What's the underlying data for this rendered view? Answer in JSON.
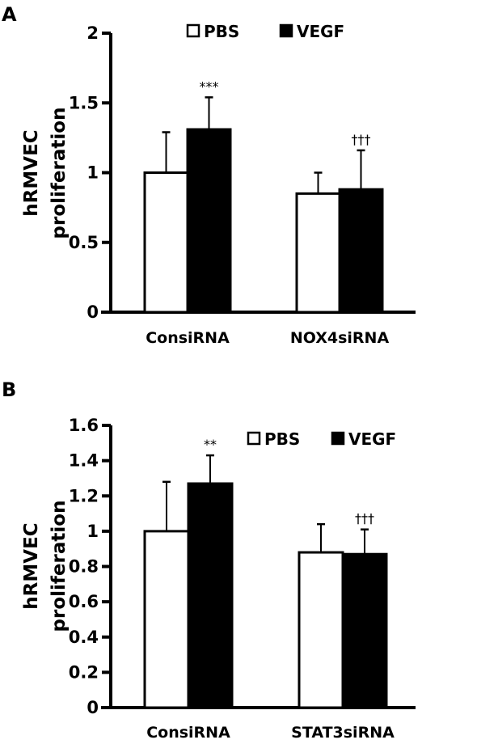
{
  "chart_data": [
    {
      "panel": "A",
      "type": "bar",
      "title": "",
      "xlabel": "",
      "ylabel": [
        "hRMVEC",
        "proliferation"
      ],
      "ylim": [
        0,
        2
      ],
      "yticks": [
        0,
        0.5,
        1,
        1.5,
        2
      ],
      "ytick_labels": [
        "0",
        "0.5",
        "1",
        "1.5",
        "2"
      ],
      "grid": false,
      "legend_position": "top-center",
      "categories": [
        "ConsiRNA",
        "NOX4siRNA"
      ],
      "series": [
        {
          "name": "PBS",
          "color": "#ffffff",
          "values": [
            1.0,
            0.85
          ],
          "error_upper": [
            1.29,
            1.0
          ]
        },
        {
          "name": "VEGF",
          "color": "#000000",
          "values": [
            1.31,
            0.88
          ],
          "error_upper": [
            1.54,
            1.16
          ]
        }
      ],
      "annotations": [
        {
          "text": "***",
          "category": 0,
          "series": 1
        },
        {
          "text": "†††",
          "category": 1,
          "series": 1
        }
      ]
    },
    {
      "panel": "B",
      "type": "bar",
      "title": "",
      "xlabel": "",
      "ylabel": [
        "hRMVEC",
        "proliferation"
      ],
      "ylim": [
        0,
        1.6
      ],
      "yticks": [
        0,
        0.2,
        0.4,
        0.6,
        0.8,
        1,
        1.2,
        1.4,
        1.6
      ],
      "ytick_labels": [
        "0",
        "0.2",
        "0.4",
        "0.6",
        "0.8",
        "1",
        "1.2",
        "1.4",
        "1.6"
      ],
      "grid": false,
      "legend_position": "top-right",
      "categories": [
        "ConsiRNA",
        "STAT3siRNA"
      ],
      "series": [
        {
          "name": "PBS",
          "color": "#ffffff",
          "values": [
            1.0,
            0.88
          ],
          "error_upper": [
            1.28,
            1.04
          ]
        },
        {
          "name": "VEGF",
          "color": "#000000",
          "values": [
            1.27,
            0.87
          ],
          "error_upper": [
            1.43,
            1.01
          ]
        }
      ],
      "annotations": [
        {
          "text": "**",
          "category": 0,
          "series": 1
        },
        {
          "text": "†††",
          "category": 1,
          "series": 1
        }
      ]
    }
  ]
}
